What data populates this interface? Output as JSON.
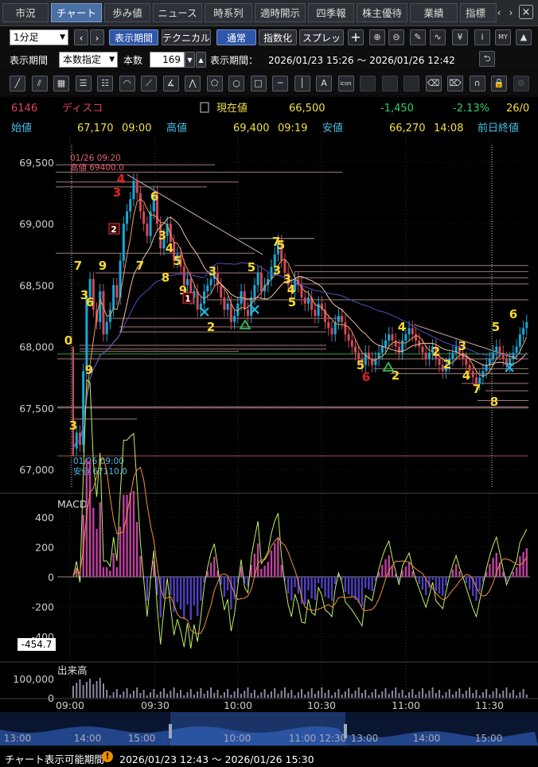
{
  "tabs": [
    {
      "label": "市況",
      "active": false
    },
    {
      "label": "チャート",
      "active": true
    },
    {
      "label": "歩み値",
      "active": false
    },
    {
      "label": "ニュース",
      "active": false
    },
    {
      "label": "時系列",
      "active": false
    },
    {
      "label": "適時開示",
      "active": false
    },
    {
      "label": "四季報",
      "active": false
    },
    {
      "label": "株主優待",
      "active": false
    },
    {
      "label": "業績",
      "active": false
    },
    {
      "label": "指標",
      "active": false
    }
  ],
  "toolbar1": {
    "interval": "1分足",
    "period_button": "表示期間",
    "technical_button": "テクニカル",
    "mode_normal": "通常",
    "mode_index": "指数化",
    "mode_spread": "スプレッド"
  },
  "toolbar2": {
    "period_label": "表示期間",
    "period_select": "本数指定",
    "count_label": "本数",
    "count_value": "169",
    "range_label": "表示期間：",
    "range_value": "2026/01/23 15:26 ～ 2026/01/26 12:42"
  },
  "drawing_tools": [
    "line-tool",
    "parallel-tool",
    "channel-tool",
    "horizontal-lines-tool",
    "retracement-tool",
    "fan-tool",
    "arc-tool",
    "gann-tool",
    "pitchfork-tool",
    "pentagon-tool",
    "circle-tool",
    "rectangle-tool",
    "hline-tool",
    "vline-tool",
    "text-tool",
    "icon-tool",
    "disabled-tool-1",
    "disabled-tool-2",
    "disabled-tool-3",
    "eraser-tool",
    "erase-all-tool",
    "magnet-tool",
    "lock-tool",
    "settings-tool"
  ],
  "text_tool_label": "A",
  "icon_tool_label": "icon",
  "quote": {
    "code": "6146",
    "name": "ディスコ",
    "current_label": "現在値",
    "current": "66,500",
    "change": "-1,450",
    "change_pct": "-2.13%",
    "time_partial": "26/0",
    "open_label": "始値",
    "open": "67,170",
    "open_time": "09:00",
    "high_label": "高値",
    "high": "69,400",
    "high_time": "09:19",
    "low_label": "安値",
    "low": "66,270",
    "low_time": "14:08",
    "prev_label": "前日終値"
  },
  "colors": {
    "up": "#19a8d8",
    "down": "#d04a5a",
    "ma_short": "#e8a060",
    "ma_mid": "#f0c0a0",
    "ma_long": "#5050c0",
    "yellow": "#f5d830",
    "red": "#e02020",
    "green": "#28c050"
  },
  "annotations": {
    "high_time": "01/26 09:20",
    "high_label": "高値 69400.0",
    "low_time": "01/26 09:00",
    "low_label": "安値 67110.0"
  },
  "y_ticks": [
    "69,500",
    "69,000",
    "68,500",
    "68,000",
    "67,500",
    "67,000"
  ],
  "x_ticks": [
    "09:00",
    "09:30",
    "10:00",
    "10:30",
    "11:00",
    "11:30"
  ],
  "macd": {
    "title": "MACD",
    "ticks": [
      "400",
      "200",
      "0",
      "-200",
      "-400"
    ],
    "cursor_value": "-454.7"
  },
  "volume": {
    "title": "出来高",
    "ticks": [
      "100,000",
      "0"
    ]
  },
  "navigator_ticks": [
    "13:00",
    "14:00",
    "15:00",
    "10:00",
    "11:00",
    "12:30",
    "13:00",
    "14:00",
    "15:00"
  ],
  "seq_numbers": [
    {
      "t": "0",
      "c": "yellow"
    },
    {
      "t": "7",
      "c": "yellow"
    },
    {
      "t": "3",
      "c": "yellow"
    },
    {
      "t": "6",
      "c": "yellow"
    },
    {
      "t": "9",
      "c": "yellow"
    },
    {
      "t": "9",
      "c": "yellow"
    },
    {
      "t": "3",
      "c": "yellow"
    },
    {
      "t": "4",
      "c": "red"
    },
    {
      "t": "3",
      "c": "red"
    },
    {
      "t": "2",
      "c": "box"
    },
    {
      "t": "6",
      "c": "yellow"
    },
    {
      "t": "7",
      "c": "yellow"
    },
    {
      "t": "3",
      "c": "yellow"
    },
    {
      "t": "4",
      "c": "yellow"
    },
    {
      "t": "5",
      "c": "yellow"
    },
    {
      "t": "8",
      "c": "yellow"
    },
    {
      "t": "9",
      "c": "yellow"
    },
    {
      "t": "1",
      "c": "box"
    },
    {
      "t": "3",
      "c": "yellow"
    },
    {
      "t": "2",
      "c": "yellow"
    },
    {
      "t": "5",
      "c": "yellow"
    },
    {
      "t": "7",
      "c": "yellow"
    },
    {
      "t": "5",
      "c": "yellow"
    },
    {
      "t": "3",
      "c": "yellow"
    },
    {
      "t": "3",
      "c": "yellow"
    },
    {
      "t": "4",
      "c": "yellow"
    },
    {
      "t": "5",
      "c": "yellow"
    },
    {
      "t": "4",
      "c": "yellow"
    },
    {
      "t": "5",
      "c": "yellow"
    },
    {
      "t": "6",
      "c": "red"
    },
    {
      "t": "2",
      "c": "yellow"
    },
    {
      "t": "2",
      "c": "yellow"
    },
    {
      "t": "3",
      "c": "yellow"
    },
    {
      "t": "2",
      "c": "yellow"
    },
    {
      "t": "4",
      "c": "yellow"
    },
    {
      "t": "7",
      "c": "yellow"
    },
    {
      "t": "5",
      "c": "yellow"
    },
    {
      "t": "8",
      "c": "yellow"
    },
    {
      "t": "6",
      "c": "yellow"
    }
  ],
  "bottom": {
    "label": "チャート表示可能期間",
    "range": "2026/01/23 12:43 ～ 2026/01/26 15:30"
  }
}
